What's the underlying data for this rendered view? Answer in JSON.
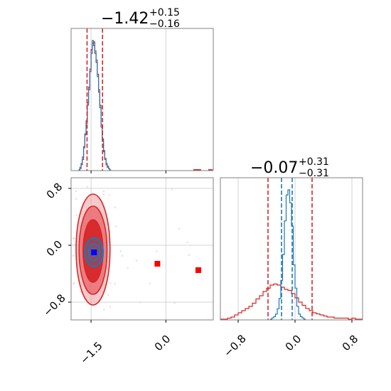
{
  "chart_data": {
    "type": "corner",
    "colors": {
      "red": "#d62728",
      "blue": "#1f77b4",
      "marker_blue": "#0000ff",
      "marker_red": "#ff0000",
      "grid": "#c8c8c8"
    },
    "panels": [
      {
        "id": "x-marginal",
        "type": "histogram",
        "title": {
          "main": "−1.42",
          "upper": "+0.15",
          "lower": "−0.16"
        },
        "xlim": [
          -1.9,
          0.95
        ],
        "grid_x": [
          -1.5,
          0.0
        ],
        "red_quantiles": [
          -1.58,
          -1.27
        ],
        "blue_quantiles": [
          -1.58,
          -1.27
        ],
        "blue_hist": {
          "edges_start": -1.75,
          "bin_width": 0.025,
          "counts": [
            0,
            0.02,
            0.05,
            0.1,
            0.18,
            0.28,
            0.38,
            0.5,
            0.64,
            0.78,
            0.9,
            1.0,
            0.96,
            0.92,
            0.85,
            0.72,
            0.62,
            0.48,
            0.35,
            0.24,
            0.15,
            0.09,
            0.05,
            0.03,
            0.01,
            0
          ]
        },
        "red_hist": {
          "edges_start": -1.75,
          "bin_width": 0.025,
          "counts": [
            0,
            0.01,
            0.04,
            0.08,
            0.17,
            0.27,
            0.36,
            0.52,
            0.62,
            0.76,
            0.93,
            0.98,
            0.99,
            0.9,
            0.83,
            0.74,
            0.6,
            0.5,
            0.33,
            0.22,
            0.14,
            0.08,
            0.04,
            0.02,
            0.01,
            0
          ]
        },
        "sparse_red_bins": [
          0.55,
          0.62,
          0.85
        ]
      },
      {
        "id": "joint",
        "type": "contour",
        "xlim": [
          -1.9,
          0.95
        ],
        "ylim": [
          -1.05,
          0.95
        ],
        "grid_x": [
          -1.5,
          0.0
        ],
        "grid_y": [
          -0.8,
          0.0,
          0.8
        ],
        "x_ticks": [
          "−1.5",
          "0.0"
        ],
        "y_ticks": [
          "0.8",
          "0.0",
          "−0.8"
        ],
        "red_contours": [
          {
            "cx": -1.46,
            "cy": -0.06,
            "rx": 0.34,
            "ry": 0.78,
            "fill": "#f2a5a7",
            "alpha": 0.6
          },
          {
            "cx": -1.46,
            "cy": -0.07,
            "rx": 0.28,
            "ry": 0.62,
            "fill": "#e8696d",
            "alpha": 0.8
          },
          {
            "cx": -1.46,
            "cy": -0.08,
            "rx": 0.2,
            "ry": 0.44,
            "fill": "#d62728",
            "alpha": 0.95
          }
        ],
        "blue_contours": [
          {
            "cx": -1.44,
            "cy": -0.1,
            "rx": 0.18,
            "ry": 0.2
          },
          {
            "cx": -1.44,
            "cy": -0.1,
            "rx": 0.11,
            "ry": 0.12
          },
          {
            "cx": -1.44,
            "cy": -0.1,
            "rx": 0.05,
            "ry": 0.05
          }
        ],
        "blue_marker": {
          "x": -1.44,
          "y": -0.1
        },
        "red_markers": [
          {
            "x": -0.17,
            "y": -0.26
          },
          {
            "x": 0.65,
            "y": -0.35
          }
        ]
      },
      {
        "id": "y-marginal",
        "type": "histogram",
        "title": {
          "main": "−0.07",
          "upper": "+0.31",
          "lower": "−0.31"
        },
        "xlim": [
          -1.05,
          0.95
        ],
        "grid_x": [
          -0.8,
          0.0,
          0.8
        ],
        "x_ticks": [
          "−0.8",
          "0.0",
          "0.8"
        ],
        "red_quantiles": [
          -0.38,
          0.24
        ],
        "blue_quantiles": [
          -0.19,
          -0.04
        ],
        "blue_hist": {
          "edges_start": -0.35,
          "bin_width": 0.025,
          "counts": [
            0,
            0.01,
            0.02,
            0.04,
            0.08,
            0.16,
            0.3,
            0.5,
            0.76,
            0.96,
            1.0,
            0.9,
            0.72,
            0.42,
            0.24,
            0.1,
            0.04,
            0.02,
            0.01,
            0
          ]
        },
        "red_hist": {
          "edges_start": -1.05,
          "bin_width": 0.05,
          "counts": [
            0,
            0,
            0.01,
            0.02,
            0.04,
            0.06,
            0.08,
            0.1,
            0.12,
            0.15,
            0.19,
            0.22,
            0.26,
            0.29,
            0.32,
            0.33,
            0.32,
            0.3,
            0.28,
            0.27,
            0.24,
            0.2,
            0.16,
            0.13,
            0.1,
            0.08,
            0.06,
            0.05,
            0.04,
            0.03,
            0.02,
            0.02,
            0.01,
            0.01,
            0.01,
            0.01,
            0,
            0.01,
            0,
            0
          ]
        }
      }
    ]
  }
}
